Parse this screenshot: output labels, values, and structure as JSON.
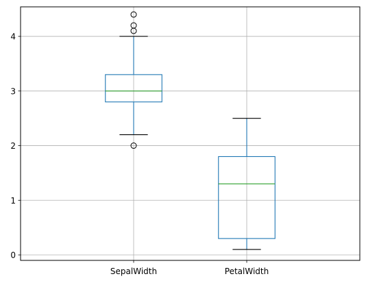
{
  "chart_data": {
    "type": "box",
    "title": "",
    "xlabel": "",
    "ylabel": "",
    "ylim": [
      -0.1,
      4.54
    ],
    "yticks": [
      0,
      1,
      2,
      3,
      4
    ],
    "grid": true,
    "categories": [
      "SepalWidth",
      "PetalWidth"
    ],
    "boxes": [
      {
        "name": "SepalWidth",
        "whisker_low": 2.2,
        "q1": 2.8,
        "median": 3.0,
        "q3": 3.3,
        "whisker_high": 4.0,
        "outliers": [
          2.0,
          4.1,
          4.2,
          4.4
        ]
      },
      {
        "name": "PetalWidth",
        "whisker_low": 0.1,
        "q1": 0.3,
        "median": 1.3,
        "q3": 1.8,
        "whisker_high": 2.5,
        "outliers": []
      }
    ],
    "colors": {
      "box": "#1f77b4",
      "whisker": "#1f77b4",
      "cap": "#000000",
      "median": "#2ca02c",
      "outlier": "#000000",
      "grid": "#b0b0b0",
      "axes": "#000000"
    }
  }
}
